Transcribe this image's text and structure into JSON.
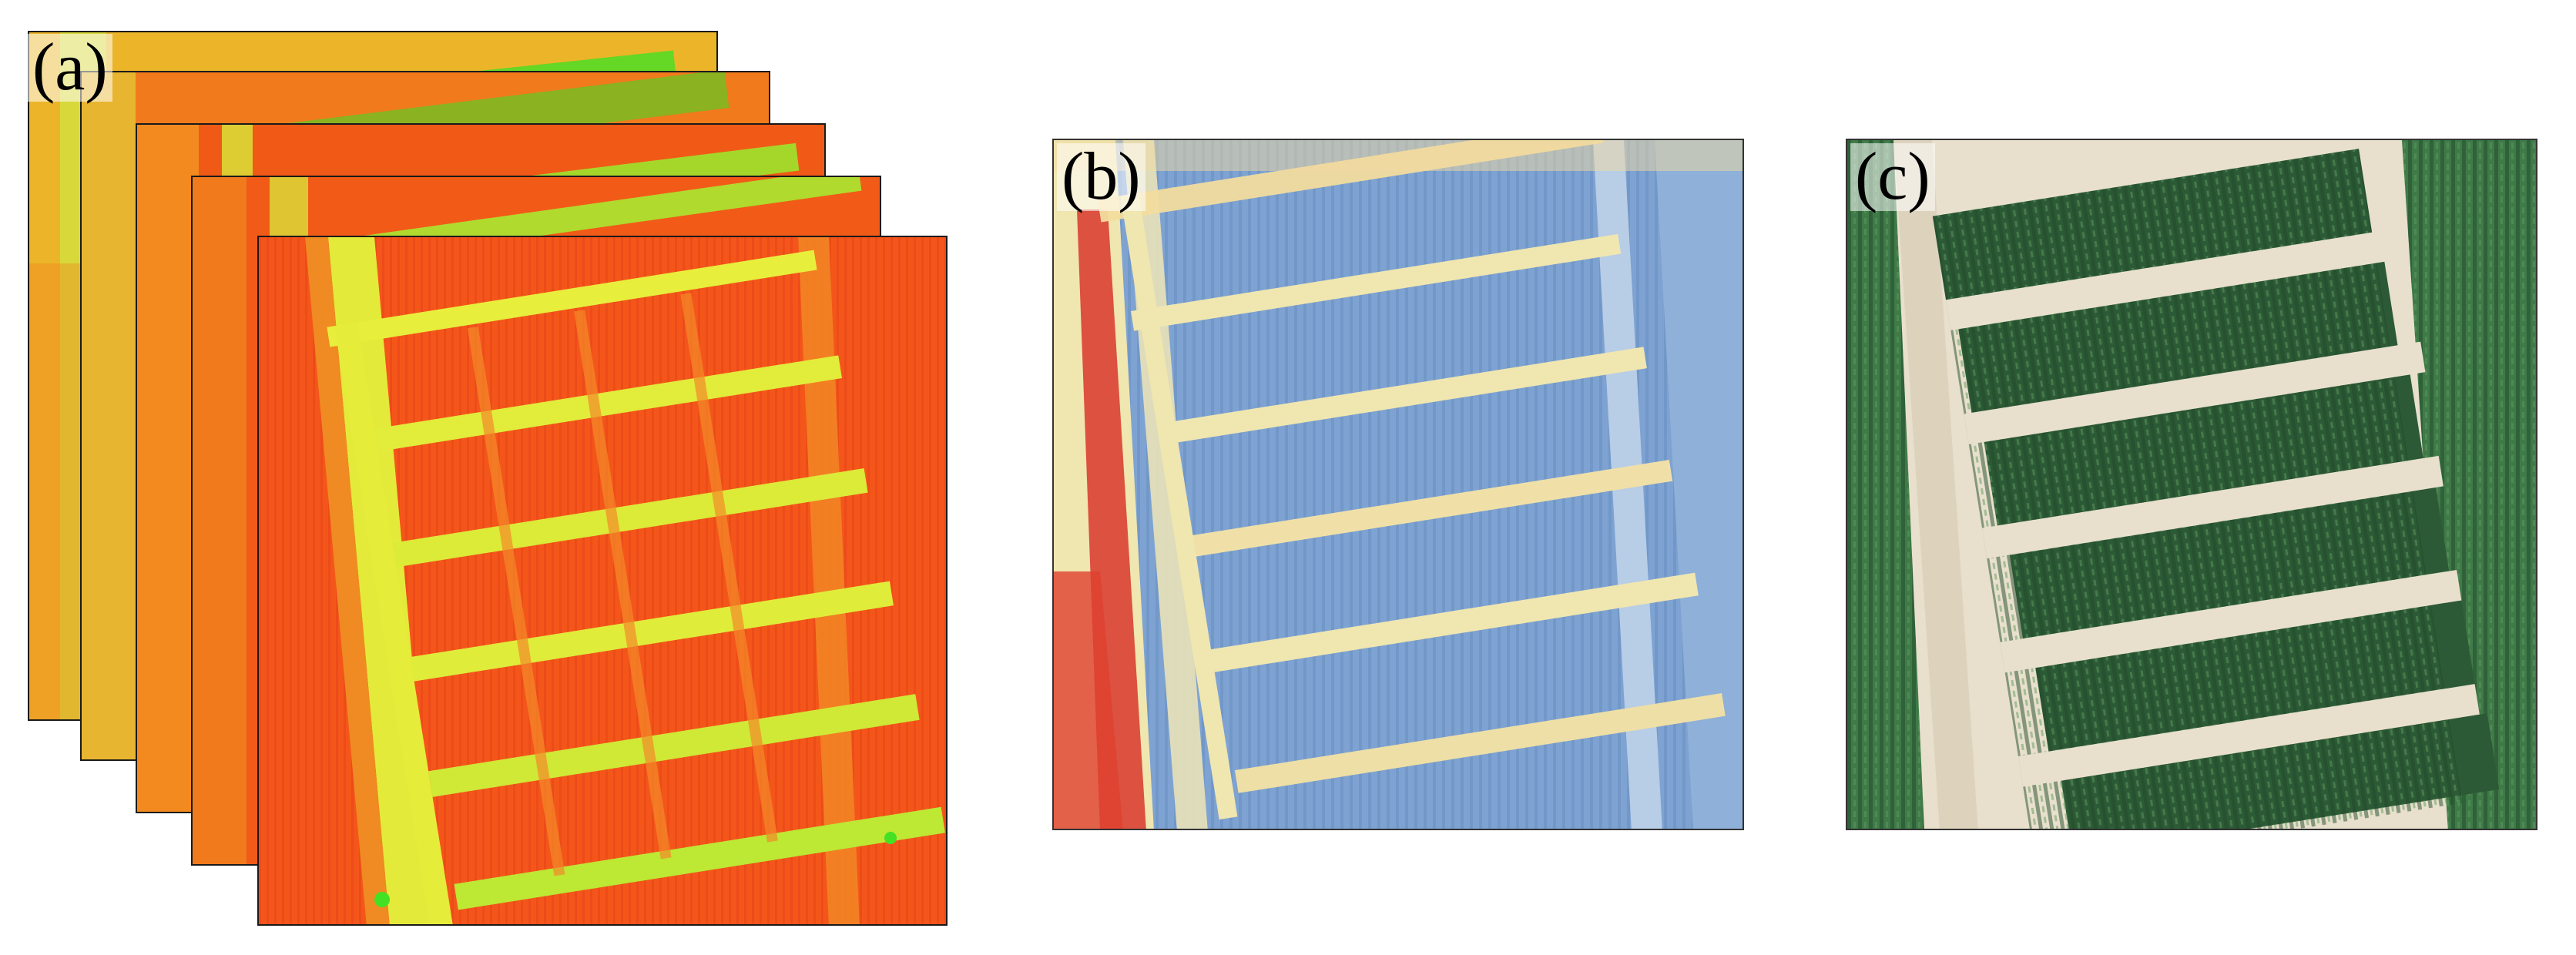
{
  "panels": {
    "a": {
      "label": "(a)",
      "layers": 5
    },
    "b": {
      "label": "(b)"
    },
    "c": {
      "label": "(c)"
    }
  },
  "colors": {
    "ndvi_red": "#f04a12",
    "ndvi_orange": "#f37a1c",
    "ndvi_yellow": "#e6f23a",
    "ndvi_green": "#44e024",
    "thermal_blue": "#6b93c9",
    "thermal_lightblue": "#9fbde0",
    "thermal_cream": "#f0e6b0",
    "thermal_red": "#d8362c",
    "soil": "#e8e0cc",
    "crop_dark": "#2d5a36",
    "crop_mid": "#3f7a48"
  }
}
